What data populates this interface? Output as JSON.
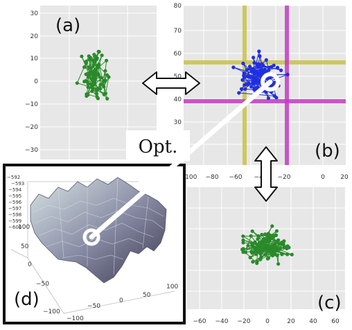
{
  "panels": {
    "a": {
      "label": "(a)",
      "y_ticks": [
        "30",
        "20",
        "10",
        "0",
        "−10",
        "−20",
        "−30"
      ]
    },
    "b": {
      "label": "(b)",
      "y_ticks": [
        "80",
        "70",
        "60",
        "50",
        "40",
        "30",
        "20"
      ],
      "x_ticks": [
        "−100",
        "−80",
        "−60",
        "−40",
        "−20",
        "0",
        "20"
      ]
    },
    "c": {
      "label": "(c)",
      "x_ticks": [
        "−60",
        "−40",
        "−20",
        "0",
        "20",
        "40",
        "60"
      ]
    },
    "d": {
      "label": "(d)",
      "z_ticks": [
        "−592",
        "−593",
        "−594",
        "−595",
        "−596",
        "−597",
        "−598",
        "−599",
        "−600"
      ],
      "y_ticks": [
        "100",
        "50",
        "0",
        "−50",
        "−100"
      ],
      "x_ticks": [
        "−100",
        "−50",
        "0",
        "50",
        "100"
      ]
    }
  },
  "opt_label": "Opt.",
  "colors": {
    "green": "#2a8a2a",
    "blue": "#1f2fe0",
    "yellow": "#c8c24a",
    "magenta": "#c03cc0",
    "plot_bg": "#e7e7e7"
  }
}
